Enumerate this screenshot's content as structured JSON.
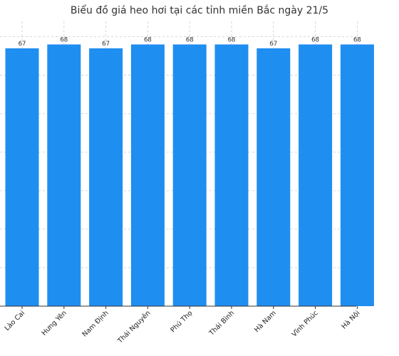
{
  "chart_data": {
    "type": "bar",
    "title": "Biểu đồ giá heo hơi tại các tỉnh miền Bắc ngày 21/5",
    "xlabel": "",
    "ylabel": "",
    "categories": [
      "Lào Cai",
      "Hưng Yên",
      "Nam Định",
      "Thái Nguyên",
      "Phú Thọ",
      "Thái Bình",
      "Hà Nam",
      "Vĩnh Phúc",
      "Hà Nội"
    ],
    "values": [
      67,
      68,
      67,
      68,
      68,
      68,
      67,
      68,
      68
    ],
    "data_labels": [
      "67",
      "68",
      "67",
      "68",
      "68",
      "68",
      "67",
      "68",
      "68"
    ],
    "ylim": [
      0,
      74
    ],
    "grid": true,
    "bar_color": "#1f8ef1"
  }
}
